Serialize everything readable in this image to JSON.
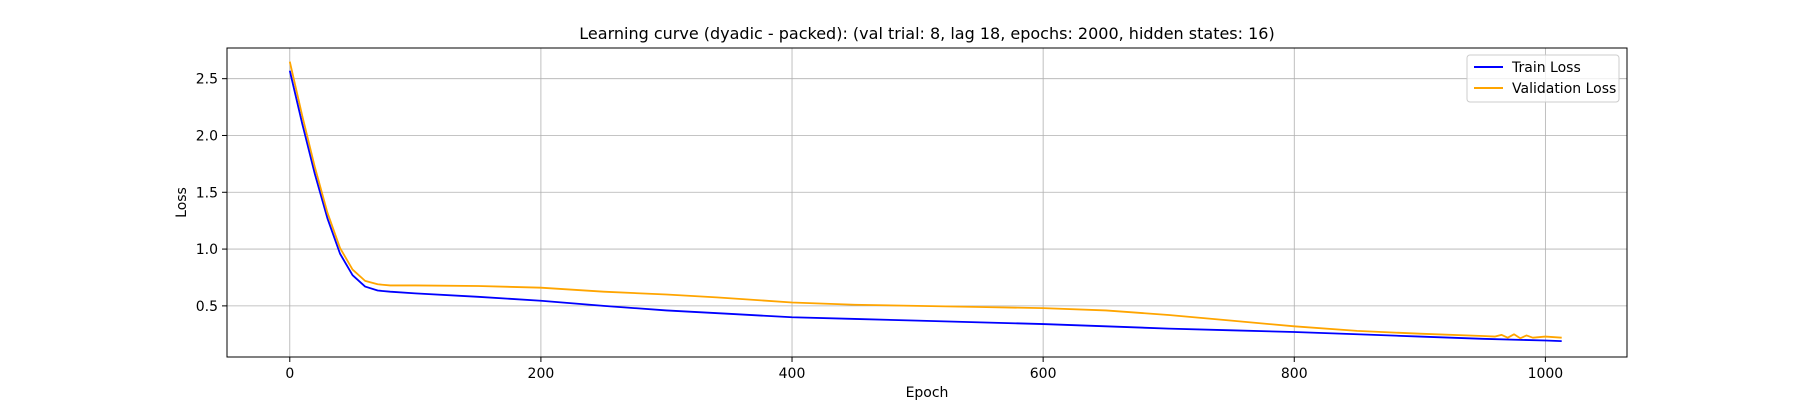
{
  "chart_data": {
    "type": "line",
    "title": "Learning curve (dyadic - packed): (val trial: 8, lag 18, epochs: 2000, hidden states: 16)",
    "xlabel": "Epoch",
    "ylabel": "Loss",
    "xlim": [
      -50,
      1065
    ],
    "ylim": [
      0.05,
      2.77
    ],
    "xticks": [
      0,
      200,
      400,
      600,
      800,
      1000
    ],
    "yticks": [
      0.5,
      1.0,
      1.5,
      2.0,
      2.5
    ],
    "xtick_labels": [
      "0",
      "200",
      "400",
      "600",
      "800",
      "1000"
    ],
    "ytick_labels": [
      "0.5",
      "1.0",
      "1.5",
      "2.0",
      "2.5"
    ],
    "grid": true,
    "legend_position": "top-right",
    "series": [
      {
        "name": "Train Loss",
        "color": "#0000ff",
        "x": [
          0,
          10,
          20,
          30,
          40,
          50,
          60,
          70,
          80,
          100,
          150,
          200,
          250,
          300,
          350,
          400,
          450,
          500,
          550,
          600,
          650,
          700,
          750,
          800,
          850,
          900,
          950,
          1000,
          1013
        ],
        "y": [
          2.57,
          2.1,
          1.66,
          1.27,
          0.96,
          0.77,
          0.67,
          0.635,
          0.625,
          0.61,
          0.58,
          0.545,
          0.5,
          0.46,
          0.43,
          0.4,
          0.385,
          0.37,
          0.355,
          0.34,
          0.32,
          0.3,
          0.285,
          0.27,
          0.25,
          0.23,
          0.21,
          0.195,
          0.19
        ]
      },
      {
        "name": "Validation Loss",
        "color": "#ffa500",
        "x": [
          0,
          10,
          20,
          30,
          40,
          50,
          60,
          70,
          80,
          100,
          150,
          200,
          250,
          300,
          340,
          400,
          450,
          500,
          550,
          600,
          650,
          700,
          750,
          800,
          850,
          900,
          950,
          960,
          965,
          970,
          975,
          980,
          985,
          990,
          1000,
          1013
        ],
        "y": [
          2.65,
          2.17,
          1.72,
          1.32,
          1.01,
          0.82,
          0.72,
          0.69,
          0.68,
          0.68,
          0.675,
          0.66,
          0.625,
          0.6,
          0.575,
          0.53,
          0.51,
          0.5,
          0.49,
          0.48,
          0.46,
          0.42,
          0.37,
          0.32,
          0.28,
          0.255,
          0.235,
          0.23,
          0.245,
          0.22,
          0.25,
          0.215,
          0.24,
          0.22,
          0.23,
          0.22
        ]
      }
    ]
  }
}
